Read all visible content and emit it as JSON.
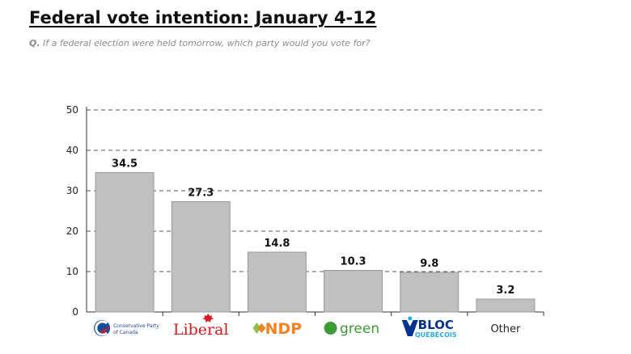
{
  "title": "Federal vote intention: January 4-12",
  "subtitle_prefix": "Q.",
  "subtitle": "If a federal election were held tomorrow, which party would you vote for?",
  "chart_data": {
    "type": "bar",
    "categories": [
      "Conservative Party of Canada",
      "Liberal",
      "NDP",
      "green",
      "BLOC QUÉBÉCOIS",
      "Other"
    ],
    "values": [
      34.5,
      27.3,
      14.8,
      10.3,
      9.8,
      3.2
    ],
    "value_labels": [
      "34.5",
      "27.3",
      "14.8",
      "10.3",
      "9.8",
      "3.2"
    ],
    "ylim": [
      0,
      50
    ],
    "yticks": [
      0,
      10,
      20,
      30,
      40,
      50
    ],
    "grid": true,
    "grid_style": "dashed",
    "bar_color": "#c0c0c0",
    "bar_edge_color": "#9a9a9a",
    "logo_text": {
      "conservative_line1": "Conservative Party",
      "conservative_line2": "of Canada",
      "liberal": "Liberal",
      "ndp": "NDP",
      "green": "green",
      "bloc_line1": "BLOC",
      "bloc_line2": "QUÉBÉCOIS",
      "other": "Other"
    },
    "logo_colors": {
      "conservative": "#1a4a9c",
      "liberal": "#d71920",
      "ndp": "#f58220",
      "ndp_leaf": "#8bc34a",
      "green": "#3d9b35",
      "bloc": "#00338d",
      "bloc_accent": "#2aa7df"
    }
  }
}
